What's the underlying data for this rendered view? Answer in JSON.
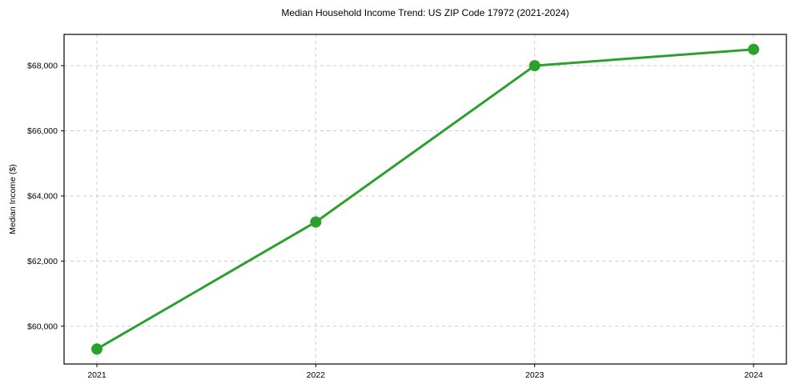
{
  "chart_data": {
    "type": "line",
    "title": "Median Household Income Trend: US ZIP Code 17972 (2021-2024)",
    "xlabel": "",
    "ylabel": "Median Income ($)",
    "x": [
      2021,
      2022,
      2023,
      2024
    ],
    "xtick_labels": [
      "2021",
      "2022",
      "2023",
      "2024"
    ],
    "series": [
      {
        "name": "Median Household Income",
        "values": [
          59300,
          63200,
          68000,
          68500
        ]
      }
    ],
    "yticks": [
      60000,
      62000,
      64000,
      66000,
      68000
    ],
    "ytick_labels": [
      "$60,000",
      "$62,000",
      "$64,000",
      "$66,000",
      "$68,000"
    ],
    "xlim": [
      2020.85,
      2024.15
    ],
    "ylim": [
      58840,
      68960
    ],
    "grid": true,
    "grid_style": "dashed",
    "legend": false,
    "marker": "circle",
    "colors": {
      "line": "#2ca02c",
      "marker": "#2ca02c",
      "grid": "#cccccc",
      "axis": "#000000",
      "text": "#000000",
      "background": "#ffffff"
    }
  }
}
